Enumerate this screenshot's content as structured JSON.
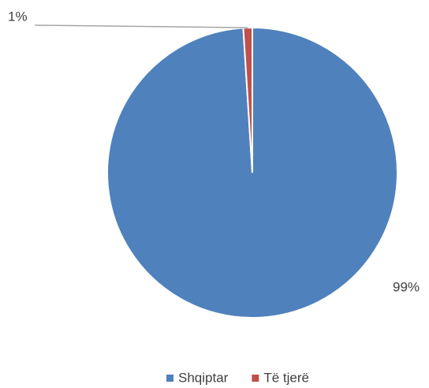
{
  "chart_data": {
    "type": "pie",
    "categories": [
      "Shqiptar",
      "Të tjerë"
    ],
    "values": [
      99,
      1
    ],
    "value_labels": [
      "99%",
      "1%"
    ],
    "colors": [
      "#4f81bd",
      "#c0504d"
    ],
    "legend": "bottom"
  }
}
